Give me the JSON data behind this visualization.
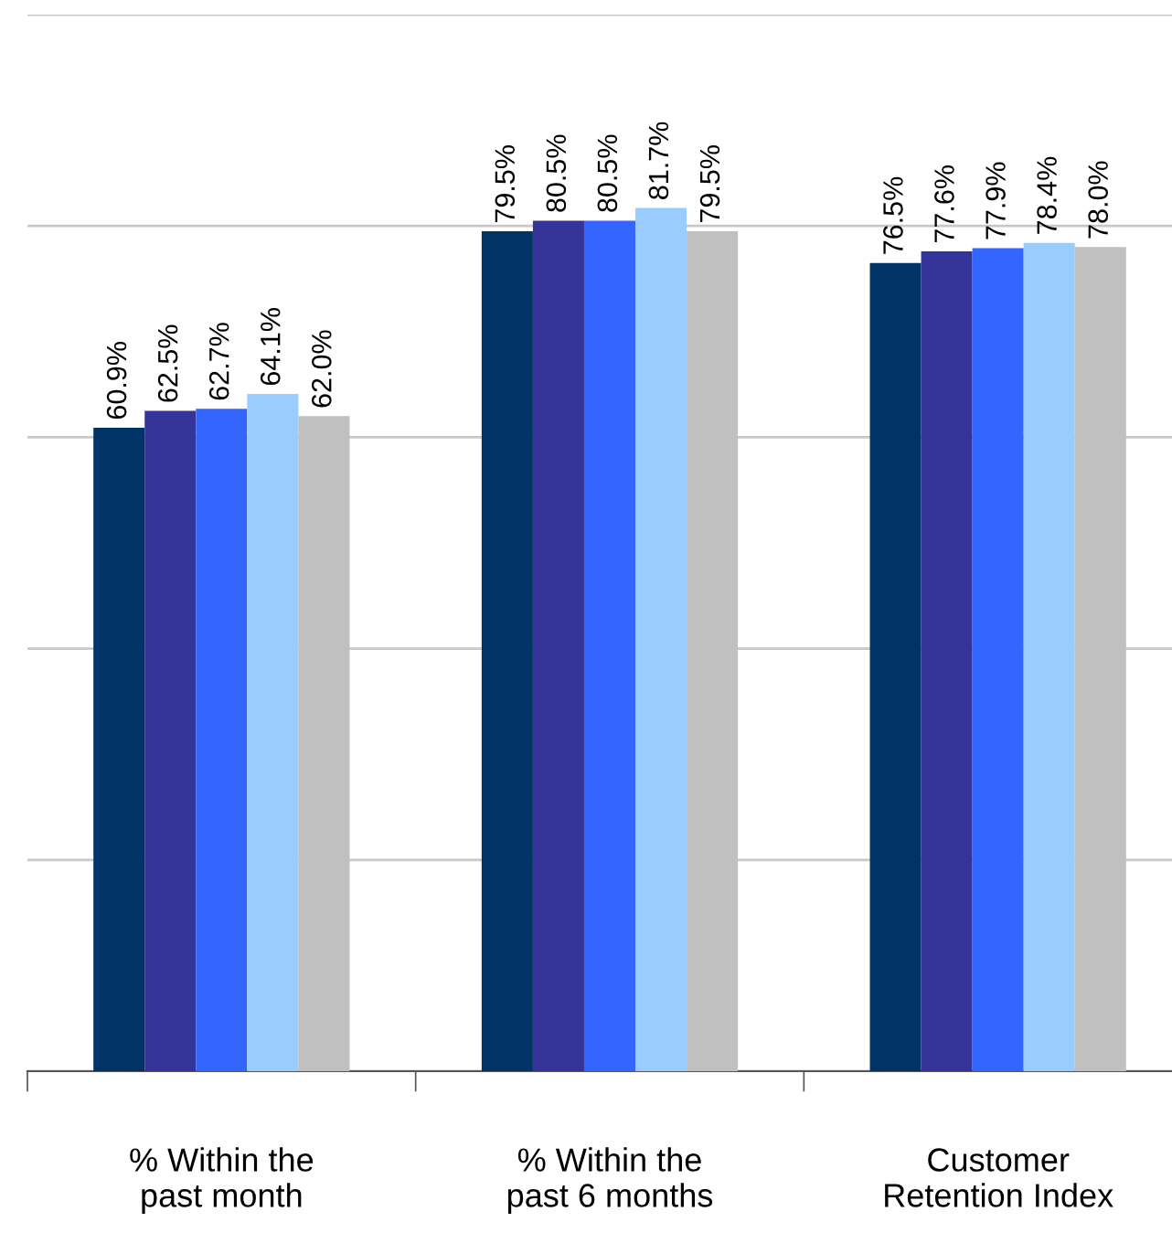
{
  "chart_data": {
    "type": "bar",
    "categories": [
      "% Within the\npast month",
      "% Within the\npast 6 months",
      "Customer\nRetention Index"
    ],
    "series": [
      {
        "color": "#003366",
        "values": [
          60.9,
          79.5,
          76.5
        ],
        "value_labels": [
          "60.9%",
          "79.5%",
          "76.5%"
        ]
      },
      {
        "color": "#333399",
        "values": [
          62.5,
          80.5,
          77.6
        ],
        "value_labels": [
          "62.5%",
          "80.5%",
          "77.6%"
        ]
      },
      {
        "color": "#3366ff",
        "values": [
          62.7,
          80.5,
          77.9
        ],
        "value_labels": [
          "62.7%",
          "80.5%",
          "77.9%"
        ]
      },
      {
        "color": "#99ccff",
        "values": [
          64.1,
          81.7,
          78.4
        ],
        "value_labels": [
          "64.1%",
          "81.7%",
          "78.4%"
        ]
      },
      {
        "color": "#c0c0c0",
        "values": [
          62.0,
          79.5,
          78.0
        ],
        "value_labels": [
          "62.0%",
          "79.5%",
          "78.0%"
        ]
      }
    ],
    "ylim": [
      0,
      100
    ],
    "yticks": [
      {
        "value": 0,
        "label": null
      },
      {
        "value": 20,
        "label": null
      },
      {
        "value": 40,
        "label": null
      },
      {
        "value": 60,
        "label": null
      },
      {
        "value": 80,
        "label": null
      },
      {
        "value": 100,
        "label": null
      }
    ],
    "grid": "y",
    "tick_labels": "x",
    "legend": false
  }
}
